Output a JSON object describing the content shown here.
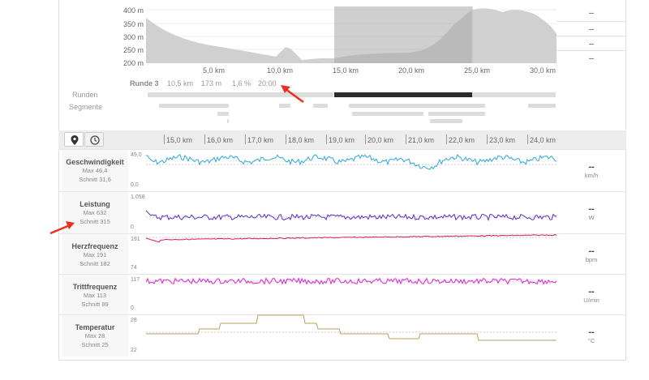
{
  "elevation": {
    "y_ticks": [
      "400 m",
      "350 m",
      "300 m",
      "250 m",
      "200 m"
    ],
    "x_ticks": [
      "5,0 km",
      "10,0 km",
      "15,0 km",
      "20,0 km",
      "25,0 km",
      "30,0 km"
    ],
    "side_values": [
      "--",
      "--",
      "--",
      "--"
    ]
  },
  "lap_summary": {
    "name": "Runde 3",
    "distance": "10,5 km",
    "elevation": "173 m",
    "grade": "1,6 %",
    "time": "20:00"
  },
  "rows": {
    "laps_label": "Runden",
    "segments_label": "Segmente"
  },
  "toolbar": {
    "pin_icon": "pin-icon",
    "clock_icon": "clock-icon"
  },
  "zoom_ticks": [
    "15,0 km",
    "16,0 km",
    "17,0 km",
    "18,0 km",
    "19,0 km",
    "20,0 km",
    "21,0 km",
    "22,0 km",
    "23,0 km",
    "24,0 km"
  ],
  "metrics": [
    {
      "name": "Geschwindigkeit",
      "max": "Max 46,4",
      "avg": "Schnitt 31,6",
      "top": "49,0",
      "bottom": "0,0",
      "value": "--",
      "unit": "km/h",
      "color": "#2ba8d8"
    },
    {
      "name": "Leistung",
      "max": "Max 632",
      "avg": "Schnitt 315",
      "top": "1.058",
      "bottom": "0",
      "value": "--",
      "unit": "W",
      "color": "#5b2fc9"
    },
    {
      "name": "Herzfrequenz",
      "max": "Max 191",
      "avg": "Schnitt 182",
      "top": "191",
      "bottom": "74",
      "value": "--",
      "unit": "bpm",
      "color": "#d81b60"
    },
    {
      "name": "Trittfrequenz",
      "max": "Max 113",
      "avg": "Schnitt 99",
      "top": "117",
      "bottom": "0",
      "value": "--",
      "unit": "U/min",
      "color": "#e020d0"
    },
    {
      "name": "Temperatur",
      "max": "Max 28",
      "avg": "Schnitt 25",
      "top": "28",
      "bottom": "22",
      "value": "--",
      "unit": "°C",
      "color": "#b5a35a"
    }
  ],
  "annotation_color": "#e8321e"
}
